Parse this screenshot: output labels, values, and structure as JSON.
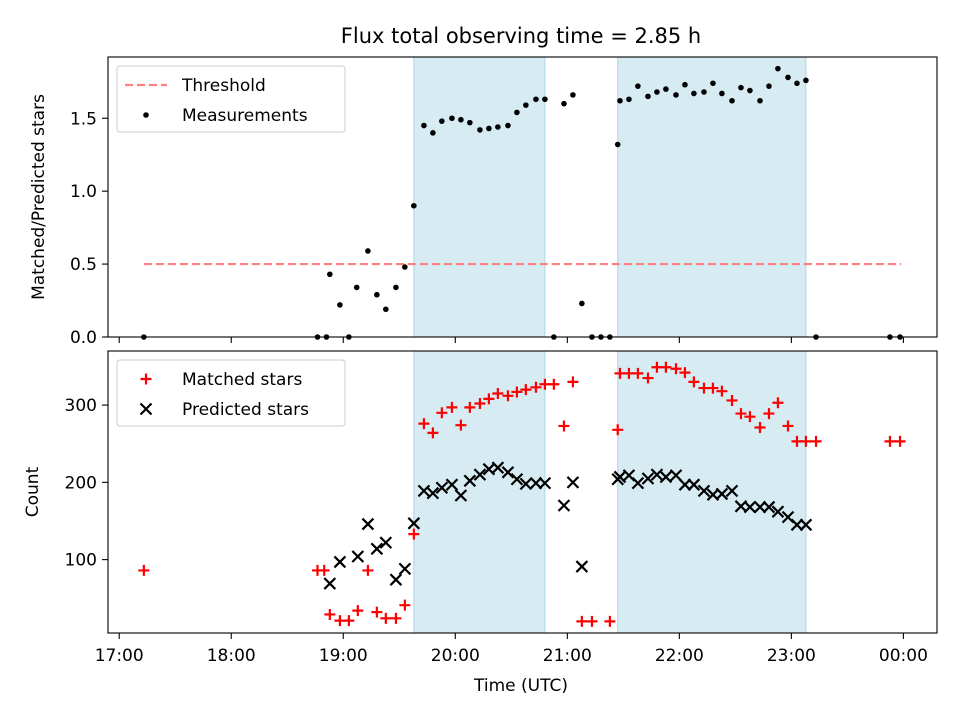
{
  "figure": {
    "title": "Flux total observing time = 2.85 h",
    "xlabel": "Time (UTC)",
    "x_tick_labels": [
      "17:00",
      "18:00",
      "19:00",
      "20:00",
      "21:00",
      "22:00",
      "23:00",
      "00:00"
    ]
  },
  "colors": {
    "threshold": "#ff7f7f",
    "measurements": "#000000",
    "matched": "#ff0000",
    "predicted": "#000000",
    "shade": "#add8e6"
  },
  "chart_data": [
    {
      "type": "scatter",
      "panel": "top",
      "title": "Flux total observing time = 2.85 h",
      "ylabel": "Matched/Predicted stars",
      "xlabel": "",
      "x_unit": "hours since 17:00 UTC",
      "xlim": [
        -0.1,
        7.3
      ],
      "ylim": [
        0,
        1.92
      ],
      "y_ticks": [
        0.0,
        0.5,
        1.0,
        1.5
      ],
      "y_tick_labels": [
        "0.0",
        "0.5",
        "1.0",
        "1.5"
      ],
      "legend": "top-left",
      "shaded_intervals": [
        [
          2.63,
          3.8
        ],
        [
          4.45,
          6.13
        ]
      ],
      "threshold": {
        "name": "Threshold",
        "y": 0.5,
        "x_range": [
          0.22,
          6.98
        ]
      },
      "series": [
        {
          "name": "Measurements",
          "points": [
            [
              0.22,
              0.0
            ],
            [
              1.77,
              0.0
            ],
            [
              1.85,
              0.0
            ],
            [
              1.88,
              0.43
            ],
            [
              1.97,
              0.22
            ],
            [
              2.05,
              0.0
            ],
            [
              2.12,
              0.34
            ],
            [
              2.22,
              0.59
            ],
            [
              2.3,
              0.29
            ],
            [
              2.38,
              0.19
            ],
            [
              2.47,
              0.34
            ],
            [
              2.55,
              0.48
            ],
            [
              2.63,
              0.9
            ],
            [
              2.72,
              1.45
            ],
            [
              2.8,
              1.4
            ],
            [
              2.88,
              1.48
            ],
            [
              2.97,
              1.5
            ],
            [
              3.05,
              1.49
            ],
            [
              3.13,
              1.47
            ],
            [
              3.22,
              1.42
            ],
            [
              3.3,
              1.43
            ],
            [
              3.38,
              1.44
            ],
            [
              3.47,
              1.45
            ],
            [
              3.55,
              1.54
            ],
            [
              3.63,
              1.59
            ],
            [
              3.72,
              1.63
            ],
            [
              3.8,
              1.63
            ],
            [
              3.88,
              0.0
            ],
            [
              3.97,
              1.6
            ],
            [
              4.05,
              1.66
            ],
            [
              4.13,
              0.23
            ],
            [
              4.22,
              0.0
            ],
            [
              4.3,
              0.0
            ],
            [
              4.38,
              0.0
            ],
            [
              4.45,
              1.32
            ],
            [
              4.47,
              1.62
            ],
            [
              4.55,
              1.63
            ],
            [
              4.63,
              1.72
            ],
            [
              4.72,
              1.65
            ],
            [
              4.8,
              1.68
            ],
            [
              4.88,
              1.7
            ],
            [
              4.97,
              1.66
            ],
            [
              5.05,
              1.73
            ],
            [
              5.13,
              1.67
            ],
            [
              5.22,
              1.68
            ],
            [
              5.3,
              1.74
            ],
            [
              5.38,
              1.67
            ],
            [
              5.47,
              1.62
            ],
            [
              5.55,
              1.71
            ],
            [
              5.63,
              1.69
            ],
            [
              5.72,
              1.62
            ],
            [
              5.8,
              1.72
            ],
            [
              5.88,
              1.84
            ],
            [
              5.97,
              1.78
            ],
            [
              6.05,
              1.74
            ],
            [
              6.13,
              1.76
            ],
            [
              6.22,
              0.0
            ],
            [
              6.88,
              0.0
            ],
            [
              6.97,
              0.0
            ]
          ]
        }
      ]
    },
    {
      "type": "scatter",
      "panel": "bottom",
      "xlabel": "Time (UTC)",
      "ylabel": "Count",
      "x_unit": "hours since 17:00 UTC",
      "xlim": [
        -0.1,
        7.3
      ],
      "ylim": [
        5,
        370
      ],
      "y_ticks": [
        100,
        200,
        300
      ],
      "y_tick_labels": [
        "100",
        "200",
        "300"
      ],
      "legend": "top-left",
      "shaded_intervals": [
        [
          2.63,
          3.8
        ],
        [
          4.45,
          6.13
        ]
      ],
      "series": [
        {
          "name": "Matched stars",
          "marker": "plus",
          "points": [
            [
              0.22,
              86
            ],
            [
              1.77,
              86
            ],
            [
              1.83,
              86
            ],
            [
              1.88,
              29
            ],
            [
              1.97,
              21
            ],
            [
              2.05,
              21
            ],
            [
              2.13,
              34
            ],
            [
              2.22,
              86
            ],
            [
              2.3,
              32
            ],
            [
              2.38,
              24
            ],
            [
              2.47,
              24
            ],
            [
              2.55,
              41
            ],
            [
              2.63,
              133
            ],
            [
              2.72,
              276
            ],
            [
              2.8,
              264
            ],
            [
              2.88,
              290
            ],
            [
              2.97,
              297
            ],
            [
              3.05,
              274
            ],
            [
              3.13,
              297
            ],
            [
              3.22,
              302
            ],
            [
              3.3,
              308
            ],
            [
              3.38,
              315
            ],
            [
              3.47,
              312
            ],
            [
              3.55,
              317
            ],
            [
              3.63,
              320
            ],
            [
              3.72,
              323
            ],
            [
              3.8,
              327
            ],
            [
              3.88,
              327
            ],
            [
              3.97,
              273
            ],
            [
              4.05,
              330
            ],
            [
              4.13,
              20
            ],
            [
              4.22,
              20
            ],
            [
              4.38,
              20
            ],
            [
              4.45,
              268
            ],
            [
              4.47,
              341
            ],
            [
              4.55,
              341
            ],
            [
              4.63,
              341
            ],
            [
              4.72,
              335
            ],
            [
              4.8,
              349
            ],
            [
              4.88,
              349
            ],
            [
              4.97,
              347
            ],
            [
              5.05,
              342
            ],
            [
              5.13,
              330
            ],
            [
              5.22,
              322
            ],
            [
              5.3,
              322
            ],
            [
              5.38,
              318
            ],
            [
              5.47,
              306
            ],
            [
              5.55,
              289
            ],
            [
              5.63,
              285
            ],
            [
              5.72,
              271
            ],
            [
              5.8,
              289
            ],
            [
              5.88,
              303
            ],
            [
              5.97,
              273
            ],
            [
              6.05,
              253
            ],
            [
              6.13,
              253
            ],
            [
              6.22,
              253
            ],
            [
              6.88,
              253
            ],
            [
              6.97,
              253
            ]
          ]
        },
        {
          "name": "Predicted stars",
          "marker": "x",
          "points": [
            [
              1.88,
              69
            ],
            [
              1.97,
              97
            ],
            [
              2.13,
              104
            ],
            [
              2.22,
              146
            ],
            [
              2.3,
              114
            ],
            [
              2.38,
              122
            ],
            [
              2.47,
              74
            ],
            [
              2.55,
              88
            ],
            [
              2.63,
              147
            ],
            [
              2.72,
              189
            ],
            [
              2.8,
              186
            ],
            [
              2.88,
              193
            ],
            [
              2.97,
              197
            ],
            [
              3.05,
              183
            ],
            [
              3.13,
              202
            ],
            [
              3.22,
              210
            ],
            [
              3.3,
              217
            ],
            [
              3.38,
              219
            ],
            [
              3.47,
              213
            ],
            [
              3.55,
              204
            ],
            [
              3.63,
              198
            ],
            [
              3.72,
              199
            ],
            [
              3.8,
              199
            ],
            [
              3.97,
              170
            ],
            [
              4.05,
              200
            ],
            [
              4.13,
              91
            ],
            [
              4.45,
              204
            ],
            [
              4.47,
              207
            ],
            [
              4.55,
              209
            ],
            [
              4.63,
              199
            ],
            [
              4.72,
              205
            ],
            [
              4.8,
              210
            ],
            [
              4.88,
              207
            ],
            [
              4.97,
              209
            ],
            [
              5.05,
              197
            ],
            [
              5.13,
              197
            ],
            [
              5.22,
              189
            ],
            [
              5.3,
              184
            ],
            [
              5.38,
              185
            ],
            [
              5.47,
              189
            ],
            [
              5.55,
              169
            ],
            [
              5.63,
              168
            ],
            [
              5.72,
              168
            ],
            [
              5.8,
              168
            ],
            [
              5.88,
              162
            ],
            [
              5.97,
              155
            ],
            [
              6.05,
              145
            ],
            [
              6.13,
              145
            ]
          ]
        }
      ]
    }
  ]
}
